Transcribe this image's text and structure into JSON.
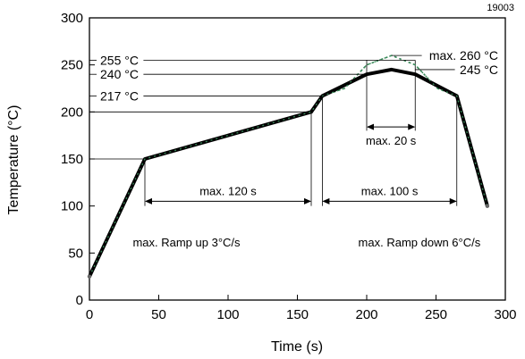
{
  "chart_data": {
    "type": "line",
    "figure_id": "19003",
    "title": "",
    "xlabel": "Time (s)",
    "ylabel": "Temperature (°C)",
    "xlim": [
      0,
      300
    ],
    "ylim": [
      0,
      300
    ],
    "x_ticks": [
      0,
      50,
      100,
      150,
      200,
      250,
      300
    ],
    "y_ticks": [
      0,
      50,
      100,
      150,
      200,
      250,
      300
    ],
    "grid": false,
    "series": [
      {
        "style": "solid",
        "color": "#000000",
        "x": [
          0,
          40,
          160,
          168,
          200,
          218,
          235,
          265,
          287
        ],
        "y": [
          25,
          150,
          200,
          217,
          240,
          245,
          240,
          217,
          100
        ]
      },
      {
        "style": "dotted",
        "color": "#3a8a5a",
        "x": [
          0,
          40,
          160,
          168,
          184,
          200,
          218,
          235,
          251,
          265,
          287
        ],
        "y": [
          25,
          150,
          200,
          217,
          225,
          250,
          260,
          250,
          225,
          217,
          100
        ]
      }
    ],
    "temperature_labels": [
      {
        "text": "255 °C",
        "value": 255,
        "side": "left"
      },
      {
        "text": "240 °C",
        "value": 240,
        "side": "left"
      },
      {
        "text": "217 °C",
        "value": 217,
        "side": "left"
      },
      {
        "text": "max. 260 °C",
        "value": 260,
        "side": "right"
      },
      {
        "text": "245 °C",
        "value": 245,
        "side": "right"
      }
    ],
    "annotations": [
      {
        "text": "max. 120 s",
        "type": "span",
        "x1": 40,
        "x2": 160,
        "y": 105
      },
      {
        "text": "max. 100 s",
        "type": "span",
        "x1": 168,
        "x2": 265,
        "y": 105
      },
      {
        "text": "max. 20 s",
        "type": "span",
        "x1": 200,
        "x2": 235,
        "y": 184
      },
      {
        "text": "max. Ramp up 3°C/s",
        "type": "note",
        "x": 70,
        "y": 57
      },
      {
        "text": "max. Ramp down 6°C/s",
        "type": "note",
        "x": 238,
        "y": 57
      }
    ]
  }
}
